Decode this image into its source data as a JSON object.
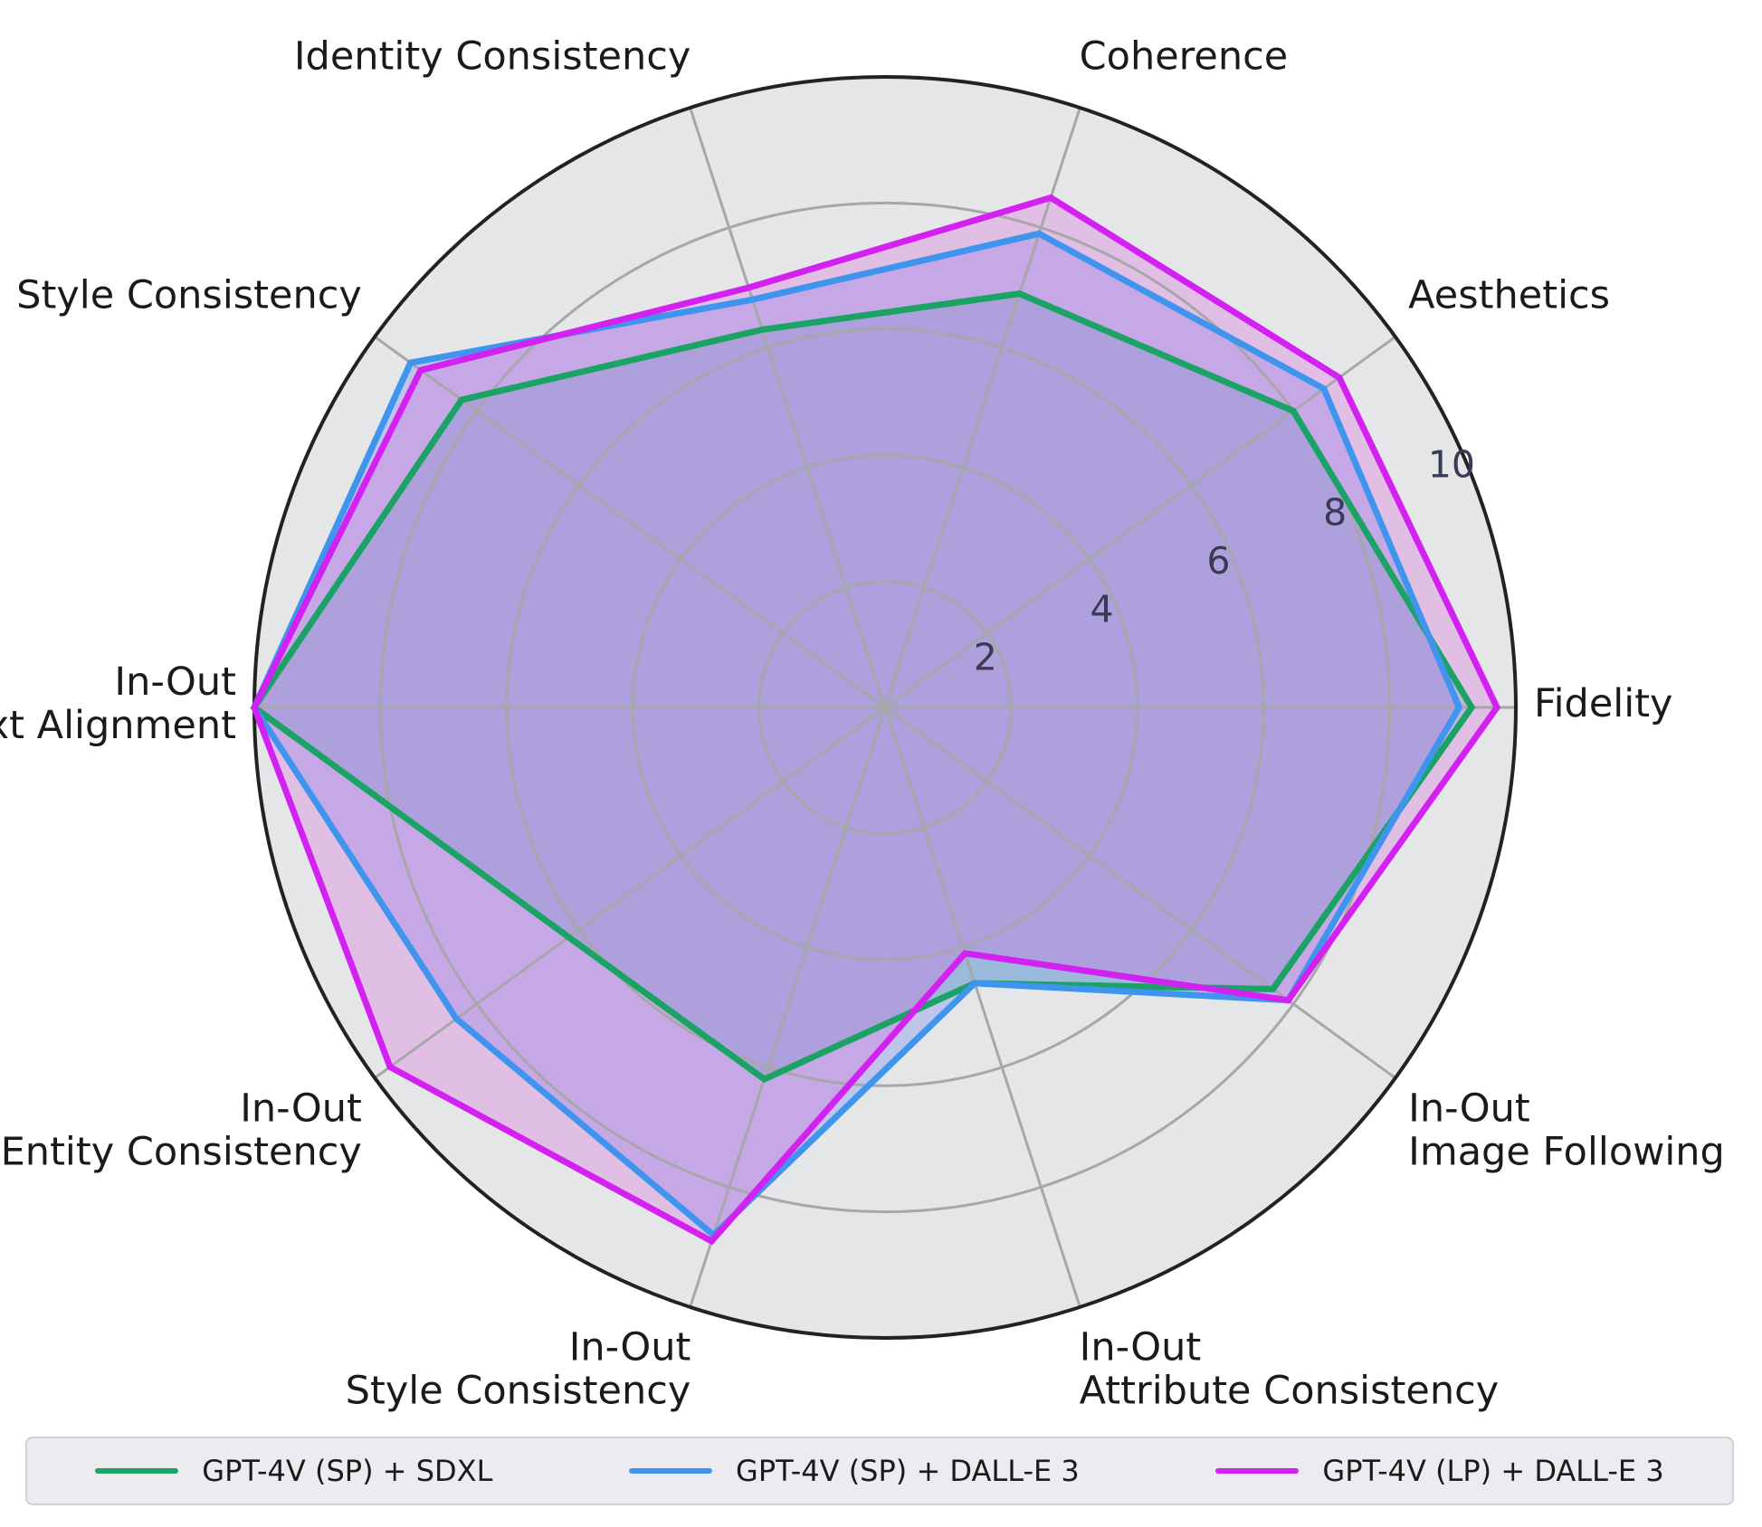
{
  "chart_data": {
    "type": "radar",
    "axes": [
      [
        "Fidelity"
      ],
      [
        "Aesthetics"
      ],
      [
        "Coherence"
      ],
      [
        "Identity Consistency"
      ],
      [
        "Style Consistency"
      ],
      [
        "In-Out",
        "Text Alignment"
      ],
      [
        "In-Out",
        "Entity Consistency"
      ],
      [
        "In-Out",
        "Style Consistency"
      ],
      [
        "In-Out",
        "Attribute Consistency"
      ],
      [
        "In-Out",
        "Image Following"
      ]
    ],
    "rlim": [
      0,
      10
    ],
    "rticks": [
      2,
      4,
      6,
      8,
      10
    ],
    "rtick_labels": [
      "2",
      "4",
      "6",
      "8",
      "10"
    ],
    "grid": true,
    "legend_position": "bottom",
    "series": [
      {
        "name": "GPT-4V (SP) + SDXL",
        "color": "#1aa364",
        "fill": "#35b2a1",
        "values": [
          9.3,
          8.0,
          6.9,
          6.3,
          8.3,
          10.0,
          6.2,
          6.2,
          4.6,
          7.6
        ]
      },
      {
        "name": "GPT-4V (SP) + DALL-E 3",
        "color": "#3f95ee",
        "fill": "#6a78ee",
        "values": [
          9.1,
          8.6,
          7.9,
          6.8,
          9.3,
          10.0,
          8.4,
          8.8,
          4.6,
          7.9
        ]
      },
      {
        "name": "GPT-4V (LP) + DALL-E 3",
        "color": "#d321f1",
        "fill": "#d966df",
        "values": [
          9.7,
          8.9,
          8.5,
          7.0,
          9.1,
          10.0,
          9.7,
          8.9,
          4.1,
          7.9
        ]
      }
    ]
  }
}
